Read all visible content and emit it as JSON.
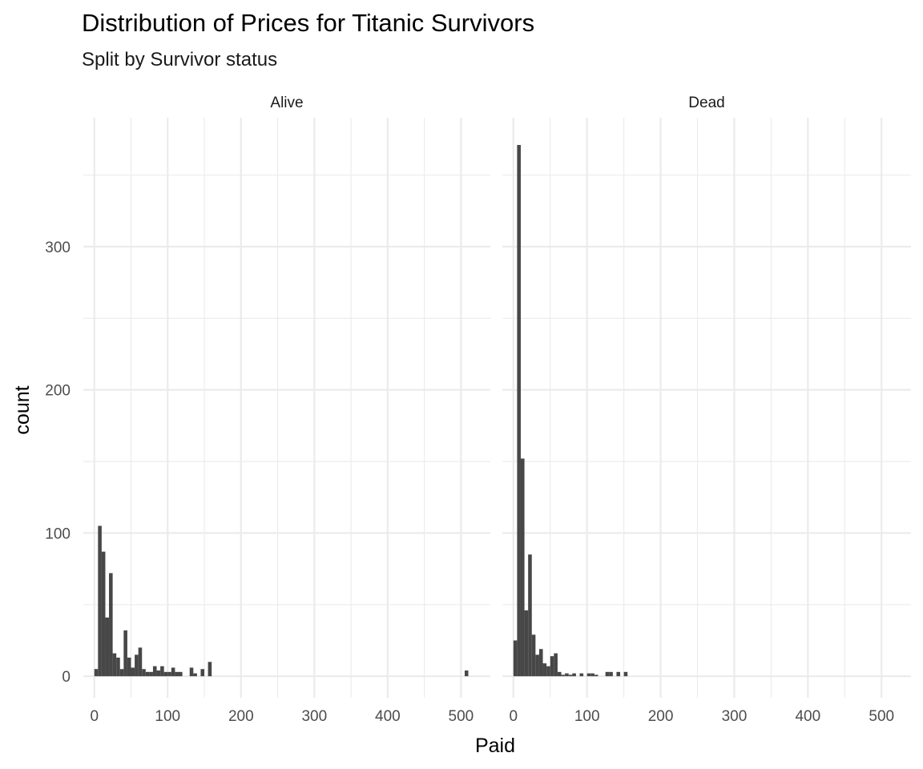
{
  "chart_data": {
    "type": "bar",
    "title": "Distribution of Prices for Titanic Survivors",
    "subtitle": "Split by Survivor status",
    "xlabel": "Paid",
    "ylabel": "count",
    "xlim": [
      -15,
      540
    ],
    "ylim": [
      -15,
      390
    ],
    "x_ticks": [
      0,
      100,
      200,
      300,
      400,
      500
    ],
    "y_ticks": [
      0,
      100,
      200,
      300
    ],
    "bin_width": 5,
    "grid": true,
    "panels": [
      {
        "name": "Alive",
        "bins": [
          {
            "x": 0,
            "count": 5
          },
          {
            "x": 5,
            "count": 105
          },
          {
            "x": 10,
            "count": 87
          },
          {
            "x": 15,
            "count": 41
          },
          {
            "x": 20,
            "count": 72
          },
          {
            "x": 25,
            "count": 16
          },
          {
            "x": 30,
            "count": 13
          },
          {
            "x": 35,
            "count": 5
          },
          {
            "x": 40,
            "count": 32
          },
          {
            "x": 45,
            "count": 13
          },
          {
            "x": 50,
            "count": 6
          },
          {
            "x": 55,
            "count": 15
          },
          {
            "x": 60,
            "count": 20
          },
          {
            "x": 65,
            "count": 5
          },
          {
            "x": 70,
            "count": 3
          },
          {
            "x": 75,
            "count": 3
          },
          {
            "x": 80,
            "count": 7
          },
          {
            "x": 85,
            "count": 4
          },
          {
            "x": 90,
            "count": 7
          },
          {
            "x": 95,
            "count": 3
          },
          {
            "x": 100,
            "count": 3
          },
          {
            "x": 105,
            "count": 6
          },
          {
            "x": 110,
            "count": 3
          },
          {
            "x": 115,
            "count": 3
          },
          {
            "x": 130,
            "count": 6
          },
          {
            "x": 135,
            "count": 2
          },
          {
            "x": 145,
            "count": 5
          },
          {
            "x": 155,
            "count": 10
          },
          {
            "x": 505,
            "count": 4
          }
        ]
      },
      {
        "name": "Dead",
        "bins": [
          {
            "x": 0,
            "count": 25
          },
          {
            "x": 5,
            "count": 371
          },
          {
            "x": 10,
            "count": 152
          },
          {
            "x": 15,
            "count": 46
          },
          {
            "x": 20,
            "count": 85
          },
          {
            "x": 25,
            "count": 29
          },
          {
            "x": 30,
            "count": 15
          },
          {
            "x": 35,
            "count": 19
          },
          {
            "x": 40,
            "count": 9
          },
          {
            "x": 45,
            "count": 7
          },
          {
            "x": 50,
            "count": 14
          },
          {
            "x": 55,
            "count": 16
          },
          {
            "x": 60,
            "count": 3
          },
          {
            "x": 65,
            "count": 1
          },
          {
            "x": 70,
            "count": 2
          },
          {
            "x": 75,
            "count": 1
          },
          {
            "x": 80,
            "count": 2
          },
          {
            "x": 90,
            "count": 2
          },
          {
            "x": 100,
            "count": 2
          },
          {
            "x": 105,
            "count": 2
          },
          {
            "x": 110,
            "count": 1
          },
          {
            "x": 125,
            "count": 3
          },
          {
            "x": 130,
            "count": 3
          },
          {
            "x": 140,
            "count": 3
          },
          {
            "x": 150,
            "count": 3
          }
        ]
      }
    ]
  }
}
